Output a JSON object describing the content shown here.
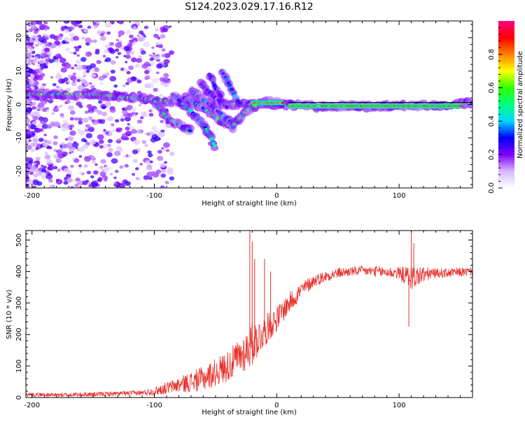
{
  "title": "S124.2023.029.17.16.R12",
  "chart_data": [
    {
      "type": "heatmap",
      "xlabel": "Height of straight line (km)",
      "ylabel": "Frequency (Hz)",
      "xlim": [
        -205,
        160
      ],
      "ylim": [
        -25,
        25
      ],
      "xticks": [
        -200,
        -100,
        0,
        100
      ],
      "yticks": [
        -20,
        -10,
        0,
        10,
        20
      ],
      "colorbar": {
        "label": "Normalized spectral amplitude",
        "range": [
          0.0,
          1.0
        ],
        "ticks": [
          0.0,
          0.2,
          0.4,
          0.6,
          0.8
        ],
        "tick_labels": [
          "0.0",
          "0.2",
          "0.4",
          "0.6",
          "0.8"
        ],
        "colors": [
          "#ffffff",
          "#d7b8ff",
          "#8000ff",
          "#0000ff",
          "#00d8ff",
          "#00ff80",
          "#30ff00",
          "#ffff00",
          "#ff8000",
          "#ff0000",
          "#ff0080"
        ]
      },
      "ridges": [
        {
          "points": [
            [
              -205,
              3
            ],
            [
              -150,
              3
            ],
            [
              -120,
              2
            ],
            [
              -90,
              1
            ],
            [
              -60,
              0.5
            ],
            [
              -30,
              0
            ],
            [
              0,
              0
            ],
            [
              30,
              -0.5
            ],
            [
              80,
              -0.5
            ],
            [
              130,
              -0.3
            ],
            [
              160,
              0.5
            ]
          ],
          "amplitude": 0.55
        },
        {
          "points": [
            [
              -100,
              1
            ],
            [
              -90,
              -4
            ],
            [
              -80,
              -6
            ],
            [
              -70,
              -8
            ]
          ],
          "amplitude": 0.45
        },
        {
          "points": [
            [
              -85,
              3
            ],
            [
              -70,
              -2
            ],
            [
              -60,
              -6
            ],
            [
              -55,
              -9
            ],
            [
              -50,
              -13
            ]
          ],
          "amplitude": 0.4
        },
        {
          "points": [
            [
              -75,
              2
            ],
            [
              -60,
              -1
            ],
            [
              -45,
              -5
            ],
            [
              -35,
              -7
            ]
          ],
          "amplitude": 0.45
        },
        {
          "points": [
            [
              -70,
              4
            ],
            [
              -55,
              0
            ],
            [
              -45,
              -3
            ],
            [
              -35,
              -6
            ]
          ],
          "amplitude": 0.35
        },
        {
          "points": [
            [
              -62,
              6
            ],
            [
              -50,
              2
            ],
            [
              -40,
              -1
            ]
          ],
          "amplitude": 0.3
        },
        {
          "points": [
            [
              -55,
              9
            ],
            [
              -50,
              5
            ],
            [
              -45,
              2
            ]
          ],
          "amplitude": 0.3
        },
        {
          "points": [
            [
              -45,
              10
            ],
            [
              -40,
              7
            ],
            [
              -35,
              3
            ],
            [
              -30,
              0
            ]
          ],
          "amplitude": 0.35
        },
        {
          "points": [
            [
              -35,
              -6
            ],
            [
              -25,
              -2
            ],
            [
              -15,
              0
            ],
            [
              -5,
              1
            ],
            [
              5,
              0.5
            ]
          ],
          "amplitude": 0.55
        }
      ],
      "high_amplitude_segments": [
        {
          "x": [
            10,
            150
          ],
          "y": -0.5,
          "amplitude": 0.9
        },
        {
          "x": [
            -20,
            5
          ],
          "y": 0.5,
          "amplitude": 0.85
        }
      ]
    },
    {
      "type": "line",
      "xlabel": "Height of straight line (km)",
      "ylabel": "SNR (10 * v/v)",
      "xlim": [
        -205,
        160
      ],
      "ylim": [
        0,
        530
      ],
      "xticks": [
        -200,
        -100,
        0,
        100
      ],
      "yticks": [
        0,
        100,
        200,
        300,
        400,
        500
      ],
      "color": "#e8302a",
      "profile": {
        "x": [
          -205,
          -180,
          -150,
          -130,
          -110,
          -100,
          -90,
          -80,
          -70,
          -60,
          -50,
          -40,
          -30,
          -20,
          -10,
          0,
          10,
          20,
          30,
          40,
          50,
          60,
          70,
          80,
          90,
          100,
          110,
          120,
          130,
          140,
          150,
          160
        ],
        "y": [
          10,
          8,
          10,
          12,
          15,
          20,
          30,
          40,
          50,
          60,
          80,
          100,
          130,
          170,
          210,
          250,
          300,
          340,
          370,
          385,
          395,
          400,
          402,
          400,
          398,
          395,
          380,
          390,
          395,
          395,
          398,
          400
        ]
      },
      "noise_amplitude": {
        "x": [
          -205,
          -110,
          -80,
          -60,
          -40,
          -30,
          -20,
          -10,
          0,
          10,
          30,
          60,
          100,
          110,
          130,
          160
        ],
        "y": [
          6,
          8,
          25,
          40,
          50,
          60,
          70,
          50,
          40,
          35,
          20,
          15,
          20,
          40,
          15,
          15
        ]
      },
      "spikes": [
        {
          "x": -22,
          "y": 530
        },
        {
          "x": -20,
          "y": 495
        },
        {
          "x": -18,
          "y": 440
        },
        {
          "x": -10,
          "y": 440
        },
        {
          "x": -5,
          "y": 400
        },
        {
          "x": 110,
          "y": 525
        },
        {
          "x": 112,
          "y": 490
        },
        {
          "x": 108,
          "y": 225
        }
      ]
    }
  ]
}
